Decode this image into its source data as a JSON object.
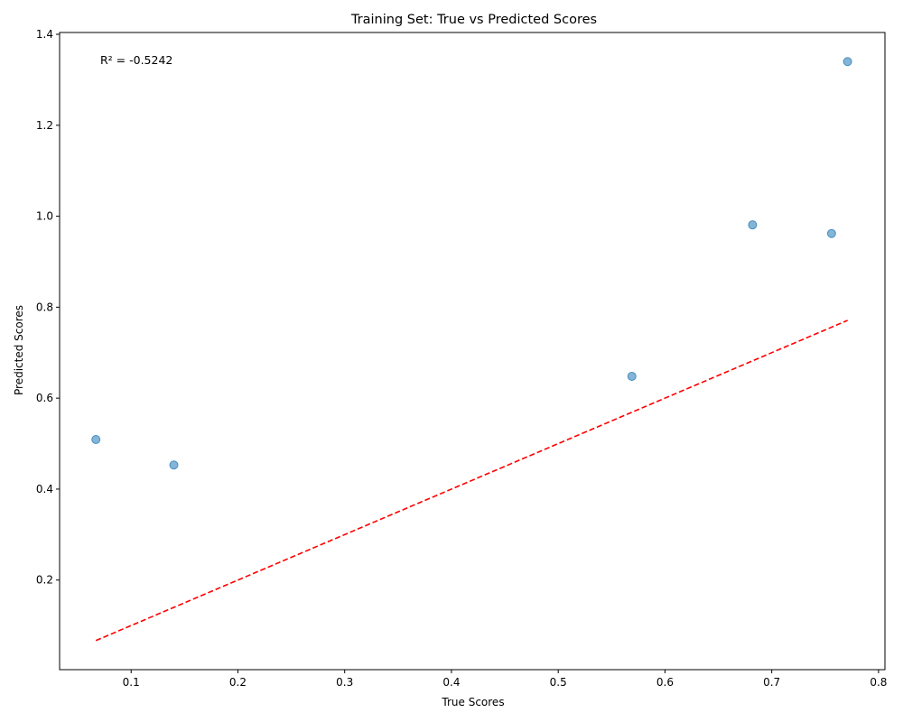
{
  "chart_data": {
    "type": "scatter",
    "title": "Training Set: True vs Predicted Scores",
    "xlabel": "True Scores",
    "ylabel": "Predicted Scores",
    "annotation": "R² = -0.5242",
    "xlim": [
      0.033,
      0.806
    ],
    "ylim": [
      0.003,
      1.404
    ],
    "xticks": [
      0.1,
      0.2,
      0.3,
      0.4,
      0.5,
      0.6,
      0.7,
      0.8
    ],
    "yticks": [
      0.2,
      0.4,
      0.6,
      0.8,
      1.0,
      1.2,
      1.4
    ],
    "xtick_labels": [
      "0.1",
      "0.2",
      "0.3",
      "0.4",
      "0.5",
      "0.6",
      "0.7",
      "0.8"
    ],
    "ytick_labels": [
      "0.2",
      "0.4",
      "0.6",
      "0.8",
      "1.0",
      "1.2",
      "1.4"
    ],
    "grid": false,
    "points": [
      {
        "x": 0.067,
        "y": 0.509
      },
      {
        "x": 0.14,
        "y": 0.453
      },
      {
        "x": 0.569,
        "y": 0.648
      },
      {
        "x": 0.682,
        "y": 0.981
      },
      {
        "x": 0.756,
        "y": 0.962
      },
      {
        "x": 0.771,
        "y": 1.34
      }
    ],
    "reference_line": {
      "from": [
        0.067,
        0.067
      ],
      "to": [
        0.771,
        0.771
      ],
      "style": "dashed",
      "color": "#ff0000"
    },
    "point_color": "#1f77b4"
  }
}
